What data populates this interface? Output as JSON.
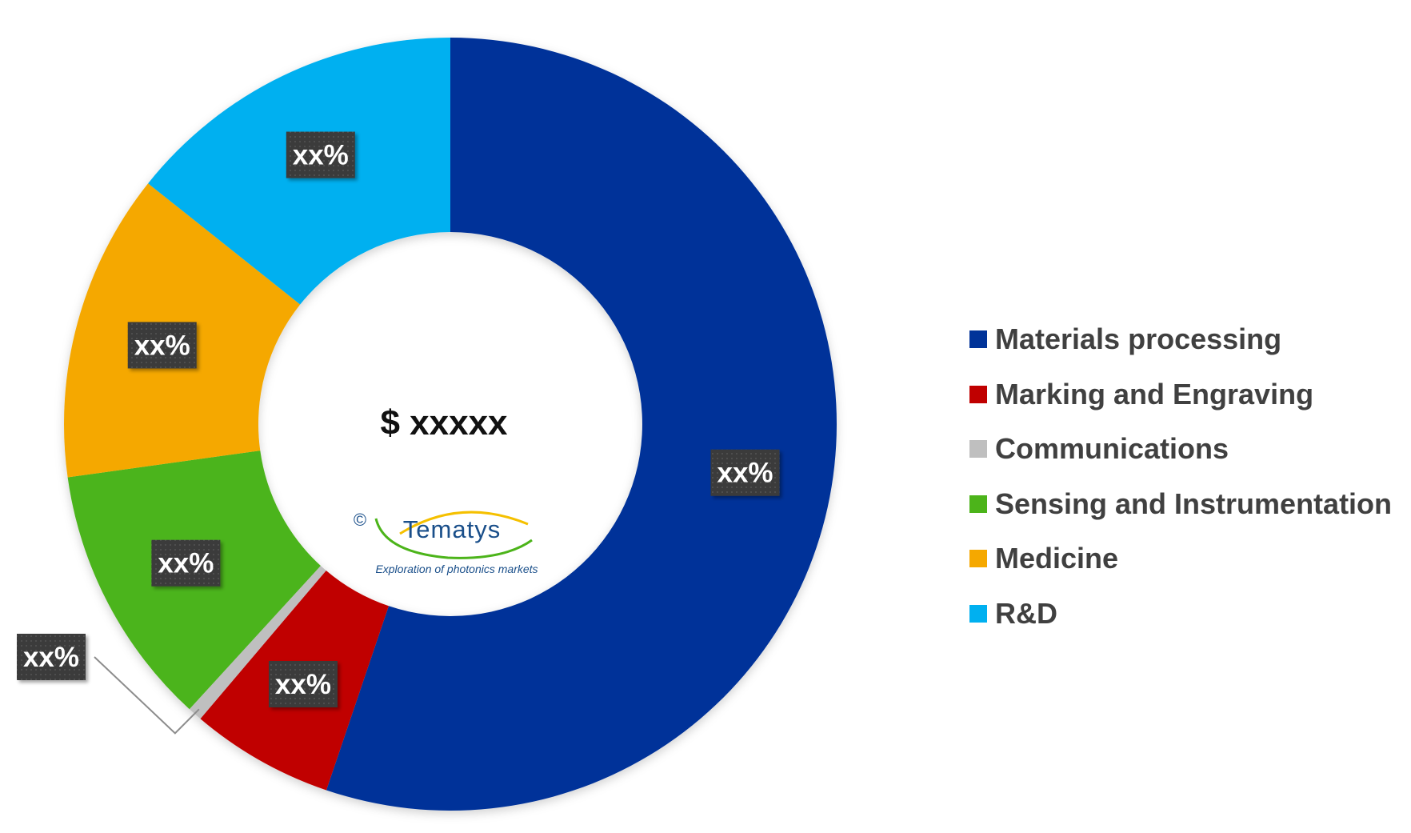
{
  "chart_data": {
    "type": "pie",
    "donut": true,
    "center_label": "$ xxxxx",
    "categories": [
      "Materials processing",
      "Marking and Engraving",
      "Communications",
      "Sensing and Instrumentation",
      "Medicine",
      "R&D"
    ],
    "values": [
      55.2,
      6.0,
      0.6,
      11.0,
      12.9,
      14.3
    ],
    "data_labels": [
      "xx%",
      "xx%",
      "xx%",
      "xx%",
      "xx%",
      "xx%"
    ],
    "colors": [
      "#003399",
      "#c00000",
      "#bfbfbf",
      "#4cb41a",
      "#f5a800",
      "#00b0f0"
    ],
    "legend_position": "right"
  },
  "logo": {
    "copyright": "©",
    "name": "Tematys",
    "tagline": "Exploration of photonics markets"
  }
}
